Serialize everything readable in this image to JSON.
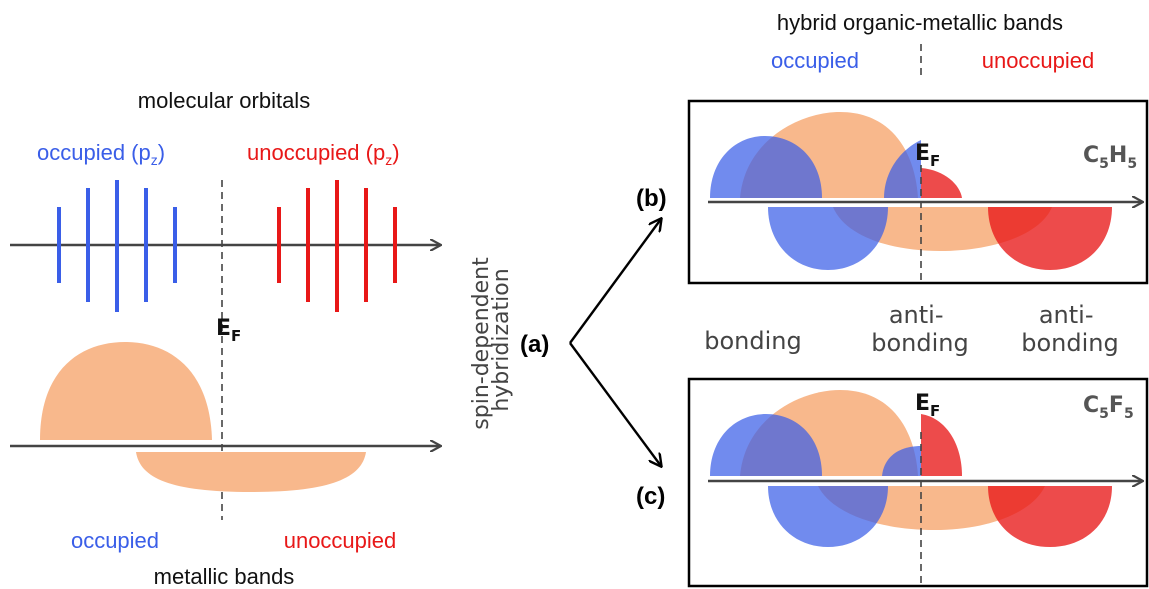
{
  "colors": {
    "occupied": "#3a5ee8",
    "unoccupied": "#e81818",
    "metal": "#f8b88c",
    "axis": "#444444",
    "text": "#111111"
  },
  "left_panel": {
    "mo_title": "molecular orbitals",
    "mo_occupied": "occupied (p",
    "mo_unoccupied": "unoccupied (p",
    "sub_z": "z",
    "close_paren": ")",
    "ef_main": "E",
    "ef_sub": "F",
    "band_occupied": "occupied",
    "band_unoccupied": "unoccupied",
    "band_title": "metallic bands"
  },
  "middle": {
    "rotated_line1": "spin-dependent",
    "rotated_line2": "hybridization",
    "label_a": "(a)",
    "label_b": "(b)",
    "label_c": "(c)"
  },
  "right_panel": {
    "title": "hybrid organic-metallic bands",
    "occupied": "occupied",
    "unoccupied": "unoccupied",
    "bonding": "bonding",
    "anti1_line1": "anti-",
    "anti1_line2": "bonding",
    "anti2_line1": "anti-",
    "anti2_line2": "bonding",
    "box_b": {
      "mol_C": "C",
      "mol_n1": "5",
      "mol_H": "H",
      "mol_n2": "5",
      "ef_main": "E",
      "ef_sub": "F"
    },
    "box_c": {
      "mol_C": "C",
      "mol_n1": "5",
      "mol_F": "F",
      "mol_n2": "5",
      "ef_main": "E",
      "ef_sub": "F"
    }
  }
}
